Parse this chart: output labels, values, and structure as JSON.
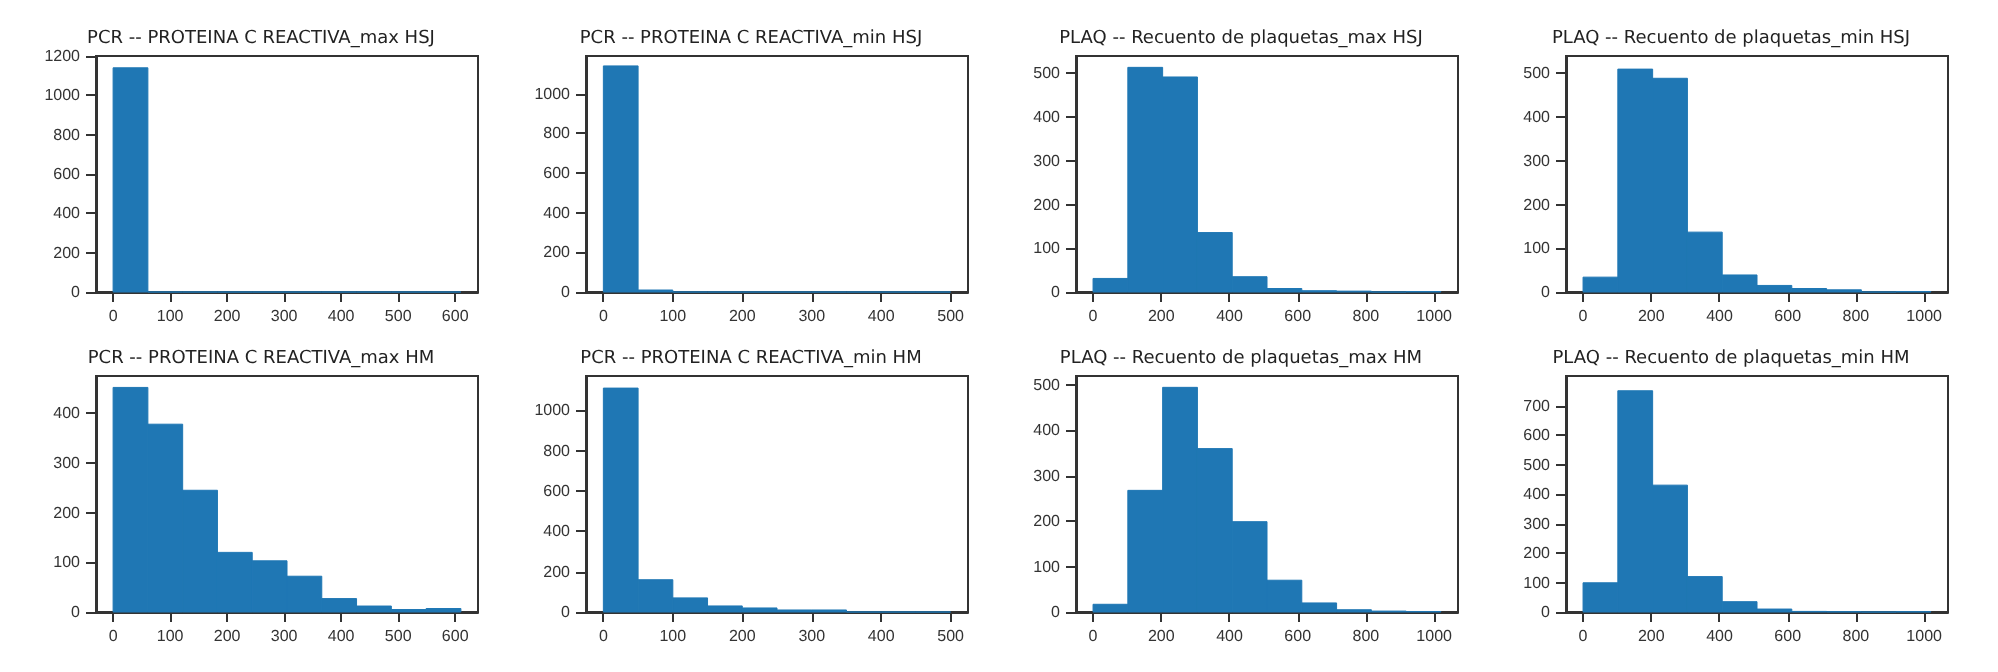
{
  "chart_data": [
    {
      "type": "histogram",
      "title": "PCR -- PROTEINA C REACTIVA_max HSJ",
      "bins": [
        0,
        61,
        122,
        183,
        244,
        305,
        366,
        427,
        488,
        549,
        610
      ],
      "values": [
        1140,
        0,
        0,
        0,
        0,
        0,
        0,
        0,
        0,
        0
      ],
      "color": "#1f77b4",
      "xlim": [
        -30,
        640
      ],
      "xticks": [
        0,
        100,
        200,
        300,
        400,
        500,
        600
      ],
      "ylim": [
        0,
        1200
      ],
      "yticks": [
        0,
        200,
        400,
        600,
        800,
        1000,
        1200
      ],
      "grid": false
    },
    {
      "type": "histogram",
      "title": "PCR -- PROTEINA C REACTIVA_min HSJ",
      "bins": [
        0,
        50,
        100,
        150,
        200,
        250,
        300,
        350,
        400,
        450,
        500
      ],
      "values": [
        1140,
        10,
        0,
        0,
        0,
        0,
        0,
        0,
        0,
        0
      ],
      "color": "#1f77b4",
      "xlim": [
        -25,
        525
      ],
      "xticks": [
        0,
        100,
        200,
        300,
        400,
        500
      ],
      "ylim": [
        0,
        1190
      ],
      "yticks": [
        0,
        200,
        400,
        600,
        800,
        1000
      ],
      "grid": false
    },
    {
      "type": "histogram",
      "title": "PLAQ -- Recuento de plaquetas_max HSJ",
      "bins": [
        0,
        102,
        204,
        306,
        408,
        510,
        612,
        714,
        816,
        918,
        1020
      ],
      "values": [
        31,
        514,
        492,
        136,
        35,
        8,
        3,
        2,
        0,
        1
      ],
      "color": "#1f77b4",
      "xlim": [
        -50,
        1070
      ],
      "xticks": [
        0,
        200,
        400,
        600,
        800,
        1000
      ],
      "ylim": [
        0,
        540
      ],
      "yticks": [
        0,
        100,
        200,
        300,
        400,
        500
      ],
      "grid": false
    },
    {
      "type": "histogram",
      "title": "PLAQ -- Recuento de plaquetas_min HSJ",
      "bins": [
        0,
        102,
        204,
        306,
        408,
        510,
        612,
        714,
        816,
        918,
        1020
      ],
      "values": [
        34,
        510,
        489,
        137,
        39,
        15,
        8,
        5,
        0,
        1
      ],
      "color": "#1f77b4",
      "xlim": [
        -50,
        1070
      ],
      "xticks": [
        0,
        200,
        400,
        600,
        800,
        1000
      ],
      "ylim": [
        0,
        540
      ],
      "yticks": [
        0,
        100,
        200,
        300,
        400,
        500
      ],
      "grid": false
    },
    {
      "type": "histogram",
      "title": "PCR -- PROTEINA C REACTIVA_max HM",
      "bins": [
        0,
        61,
        122,
        183,
        244,
        305,
        366,
        427,
        488,
        549,
        610
      ],
      "values": [
        452,
        378,
        245,
        120,
        103,
        72,
        27,
        12,
        5,
        7
      ],
      "color": "#1f77b4",
      "xlim": [
        -30,
        640
      ],
      "xticks": [
        0,
        100,
        200,
        300,
        400,
        500,
        600
      ],
      "ylim": [
        0,
        475
      ],
      "yticks": [
        0,
        100,
        200,
        300,
        400
      ],
      "grid": false
    },
    {
      "type": "histogram",
      "title": "PCR -- PROTEINA C REACTIVA_min HM",
      "bins": [
        0,
        50,
        100,
        150,
        200,
        250,
        300,
        350,
        400,
        450,
        500
      ],
      "values": [
        1110,
        160,
        70,
        30,
        20,
        10,
        10,
        0,
        0,
        0
      ],
      "color": "#1f77b4",
      "xlim": [
        -25,
        525
      ],
      "xticks": [
        0,
        100,
        200,
        300,
        400,
        500
      ],
      "ylim": [
        0,
        1170
      ],
      "yticks": [
        0,
        200,
        400,
        600,
        800,
        1000
      ],
      "grid": false
    },
    {
      "type": "histogram",
      "title": "PLAQ -- Recuento de plaquetas_max HM",
      "bins": [
        0,
        102,
        204,
        306,
        408,
        510,
        612,
        714,
        816,
        918,
        1020
      ],
      "values": [
        17,
        268,
        495,
        360,
        199,
        70,
        20,
        5,
        2,
        1
      ],
      "color": "#1f77b4",
      "xlim": [
        -50,
        1070
      ],
      "xticks": [
        0,
        200,
        400,
        600,
        800,
        1000
      ],
      "ylim": [
        0,
        520
      ],
      "yticks": [
        0,
        100,
        200,
        300,
        400,
        500
      ],
      "grid": false
    },
    {
      "type": "histogram",
      "title": "PLAQ -- Recuento de plaquetas_min HM",
      "bins": [
        0,
        102,
        204,
        306,
        408,
        510,
        612,
        714,
        816,
        918,
        1020
      ],
      "values": [
        99,
        750,
        430,
        120,
        35,
        10,
        2,
        1,
        0,
        1
      ],
      "color": "#1f77b4",
      "xlim": [
        -50,
        1070
      ],
      "xticks": [
        0,
        200,
        400,
        600,
        800,
        1000
      ],
      "ylim": [
        0,
        800
      ],
      "yticks": [
        0,
        100,
        200,
        300,
        400,
        500,
        600,
        700
      ],
      "grid": false
    }
  ]
}
